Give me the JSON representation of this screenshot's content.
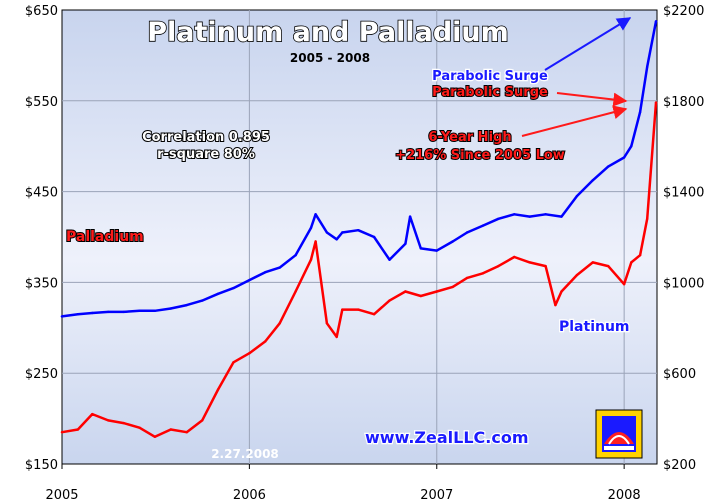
{
  "chart_data": {
    "type": "line",
    "title": "Platinum and Palladium",
    "subtitle": "2005 - 2008",
    "x_tick_labels": [
      "2005",
      "2006",
      "2007",
      "2008"
    ],
    "x_range": [
      "2005-01-01",
      "2008-03-05"
    ],
    "y_left": {
      "range": [
        150,
        650
      ],
      "ticks": [
        150,
        250,
        350,
        450,
        550,
        650
      ],
      "tick_labels": [
        "$150",
        "$250",
        "$350",
        "$450",
        "$550",
        "$650"
      ]
    },
    "y_right": {
      "range": [
        200,
        2200
      ],
      "ticks": [
        200,
        600,
        1000,
        1400,
        1800,
        2200
      ],
      "tick_labels": [
        "$200",
        "$600",
        "$1000",
        "$1400",
        "$1800",
        "$2200"
      ]
    },
    "grid": true,
    "series": [
      {
        "name": "Palladium",
        "axis": "left",
        "color": "#ff0000",
        "x": [
          "2005-01-01",
          "2005-02-01",
          "2005-03-01",
          "2005-04-01",
          "2005-05-01",
          "2005-06-01",
          "2005-07-01",
          "2005-08-01",
          "2005-09-01",
          "2005-10-01",
          "2005-11-01",
          "2005-12-01",
          "2006-01-01",
          "2006-02-01",
          "2006-03-01",
          "2006-04-01",
          "2006-05-01",
          "2006-05-10",
          "2006-06-01",
          "2006-06-20",
          "2006-07-01",
          "2006-08-01",
          "2006-09-01",
          "2006-10-01",
          "2006-11-01",
          "2006-12-01",
          "2007-01-01",
          "2007-02-01",
          "2007-03-01",
          "2007-04-01",
          "2007-05-01",
          "2007-06-01",
          "2007-07-01",
          "2007-08-01",
          "2007-08-20",
          "2007-09-01",
          "2007-10-01",
          "2007-11-01",
          "2007-12-01",
          "2008-01-01",
          "2008-01-15",
          "2008-02-01",
          "2008-02-15",
          "2008-03-03"
        ],
        "values": [
          185,
          188,
          205,
          198,
          195,
          190,
          180,
          188,
          185,
          198,
          232,
          262,
          272,
          285,
          305,
          340,
          375,
          395,
          305,
          290,
          320,
          320,
          315,
          330,
          340,
          335,
          340,
          345,
          355,
          360,
          368,
          378,
          372,
          368,
          325,
          340,
          358,
          372,
          368,
          348,
          372,
          380,
          420,
          548
        ]
      },
      {
        "name": "Platinum",
        "axis": "right",
        "color": "#0000ff",
        "x": [
          "2005-01-01",
          "2005-02-01",
          "2005-03-01",
          "2005-04-01",
          "2005-05-01",
          "2005-06-01",
          "2005-07-01",
          "2005-08-01",
          "2005-09-01",
          "2005-10-01",
          "2005-11-01",
          "2005-12-01",
          "2006-01-01",
          "2006-02-01",
          "2006-03-01",
          "2006-04-01",
          "2006-05-01",
          "2006-05-10",
          "2006-06-01",
          "2006-06-20",
          "2006-07-01",
          "2006-08-01",
          "2006-09-01",
          "2006-10-01",
          "2006-11-01",
          "2006-11-10",
          "2006-12-01",
          "2007-01-01",
          "2007-02-01",
          "2007-03-01",
          "2007-04-01",
          "2007-05-01",
          "2007-06-01",
          "2007-07-01",
          "2007-08-01",
          "2007-09-01",
          "2007-10-01",
          "2007-11-01",
          "2007-12-01",
          "2008-01-01",
          "2008-01-15",
          "2008-02-01",
          "2008-02-15",
          "2008-03-03"
        ],
        "values": [
          850,
          860,
          865,
          870,
          870,
          875,
          875,
          885,
          900,
          920,
          950,
          975,
          1010,
          1045,
          1065,
          1120,
          1240,
          1300,
          1220,
          1190,
          1220,
          1230,
          1200,
          1100,
          1170,
          1290,
          1150,
          1140,
          1180,
          1220,
          1250,
          1280,
          1300,
          1290,
          1300,
          1290,
          1380,
          1450,
          1510,
          1550,
          1600,
          1750,
          1950,
          2150
        ]
      }
    ],
    "annotations": [
      {
        "text": "Correlation 0.895",
        "color": "white"
      },
      {
        "text": "r-square 80%",
        "color": "white"
      },
      {
        "text": "Parabolic Surge",
        "color": "#1a1aff"
      },
      {
        "text": "Parabolic Surge",
        "color": "#ff1a1a"
      },
      {
        "text": "6-Year High",
        "color": "#ff1a1a"
      },
      {
        "text": "+216% Since 2005 Low",
        "color": "#ff1a1a"
      },
      {
        "text": "2.27.2008",
        "color": "white"
      }
    ],
    "series_labels": [
      {
        "text": "Palladium",
        "color": "#ff1a1a"
      },
      {
        "text": "Platinum",
        "color": "#1a1aff"
      }
    ],
    "watermark": "www.ZealLLC.com"
  }
}
